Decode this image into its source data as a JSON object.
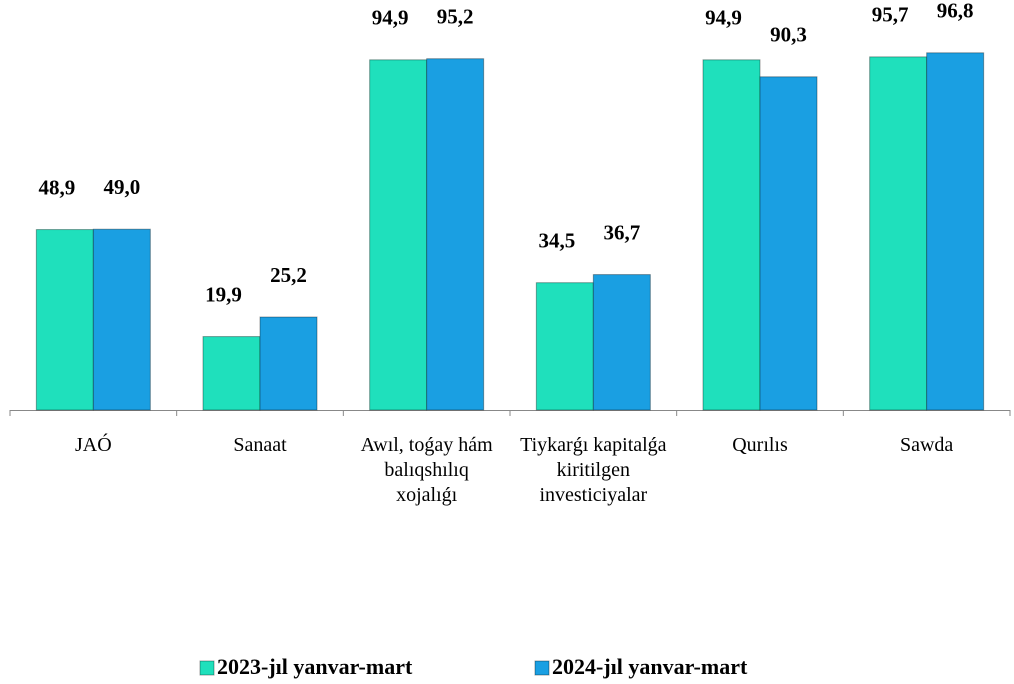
{
  "chart_data": {
    "type": "bar",
    "categories": [
      "JAÓ",
      "Sanaat",
      "Awıl, toǵay hám balıqshılıq xojalıǵı",
      "Tiykarǵı kapitalǵa kiritilgen investiciyalar",
      "Qurılıs",
      "Sawda"
    ],
    "series": [
      {
        "name": "2023-jıl yanvar-mart",
        "color": "#1fe0bc",
        "values": [
          48.9,
          19.9,
          94.9,
          34.5,
          94.9,
          95.7
        ],
        "value_labels": [
          "48,9",
          "19,9",
          "94,9",
          "34,5",
          "94,9",
          "95,7"
        ]
      },
      {
        "name": "2024-jıl yanvar-mart",
        "color": "#1a9fe2",
        "values": [
          49.0,
          25.2,
          95.2,
          36.7,
          90.3,
          96.8
        ],
        "value_labels": [
          "49,0",
          "25,2",
          "95,2",
          "36,7",
          "90,3",
          "96,8"
        ]
      }
    ],
    "ylim": [
      0,
      100
    ],
    "legend": "bottom"
  }
}
